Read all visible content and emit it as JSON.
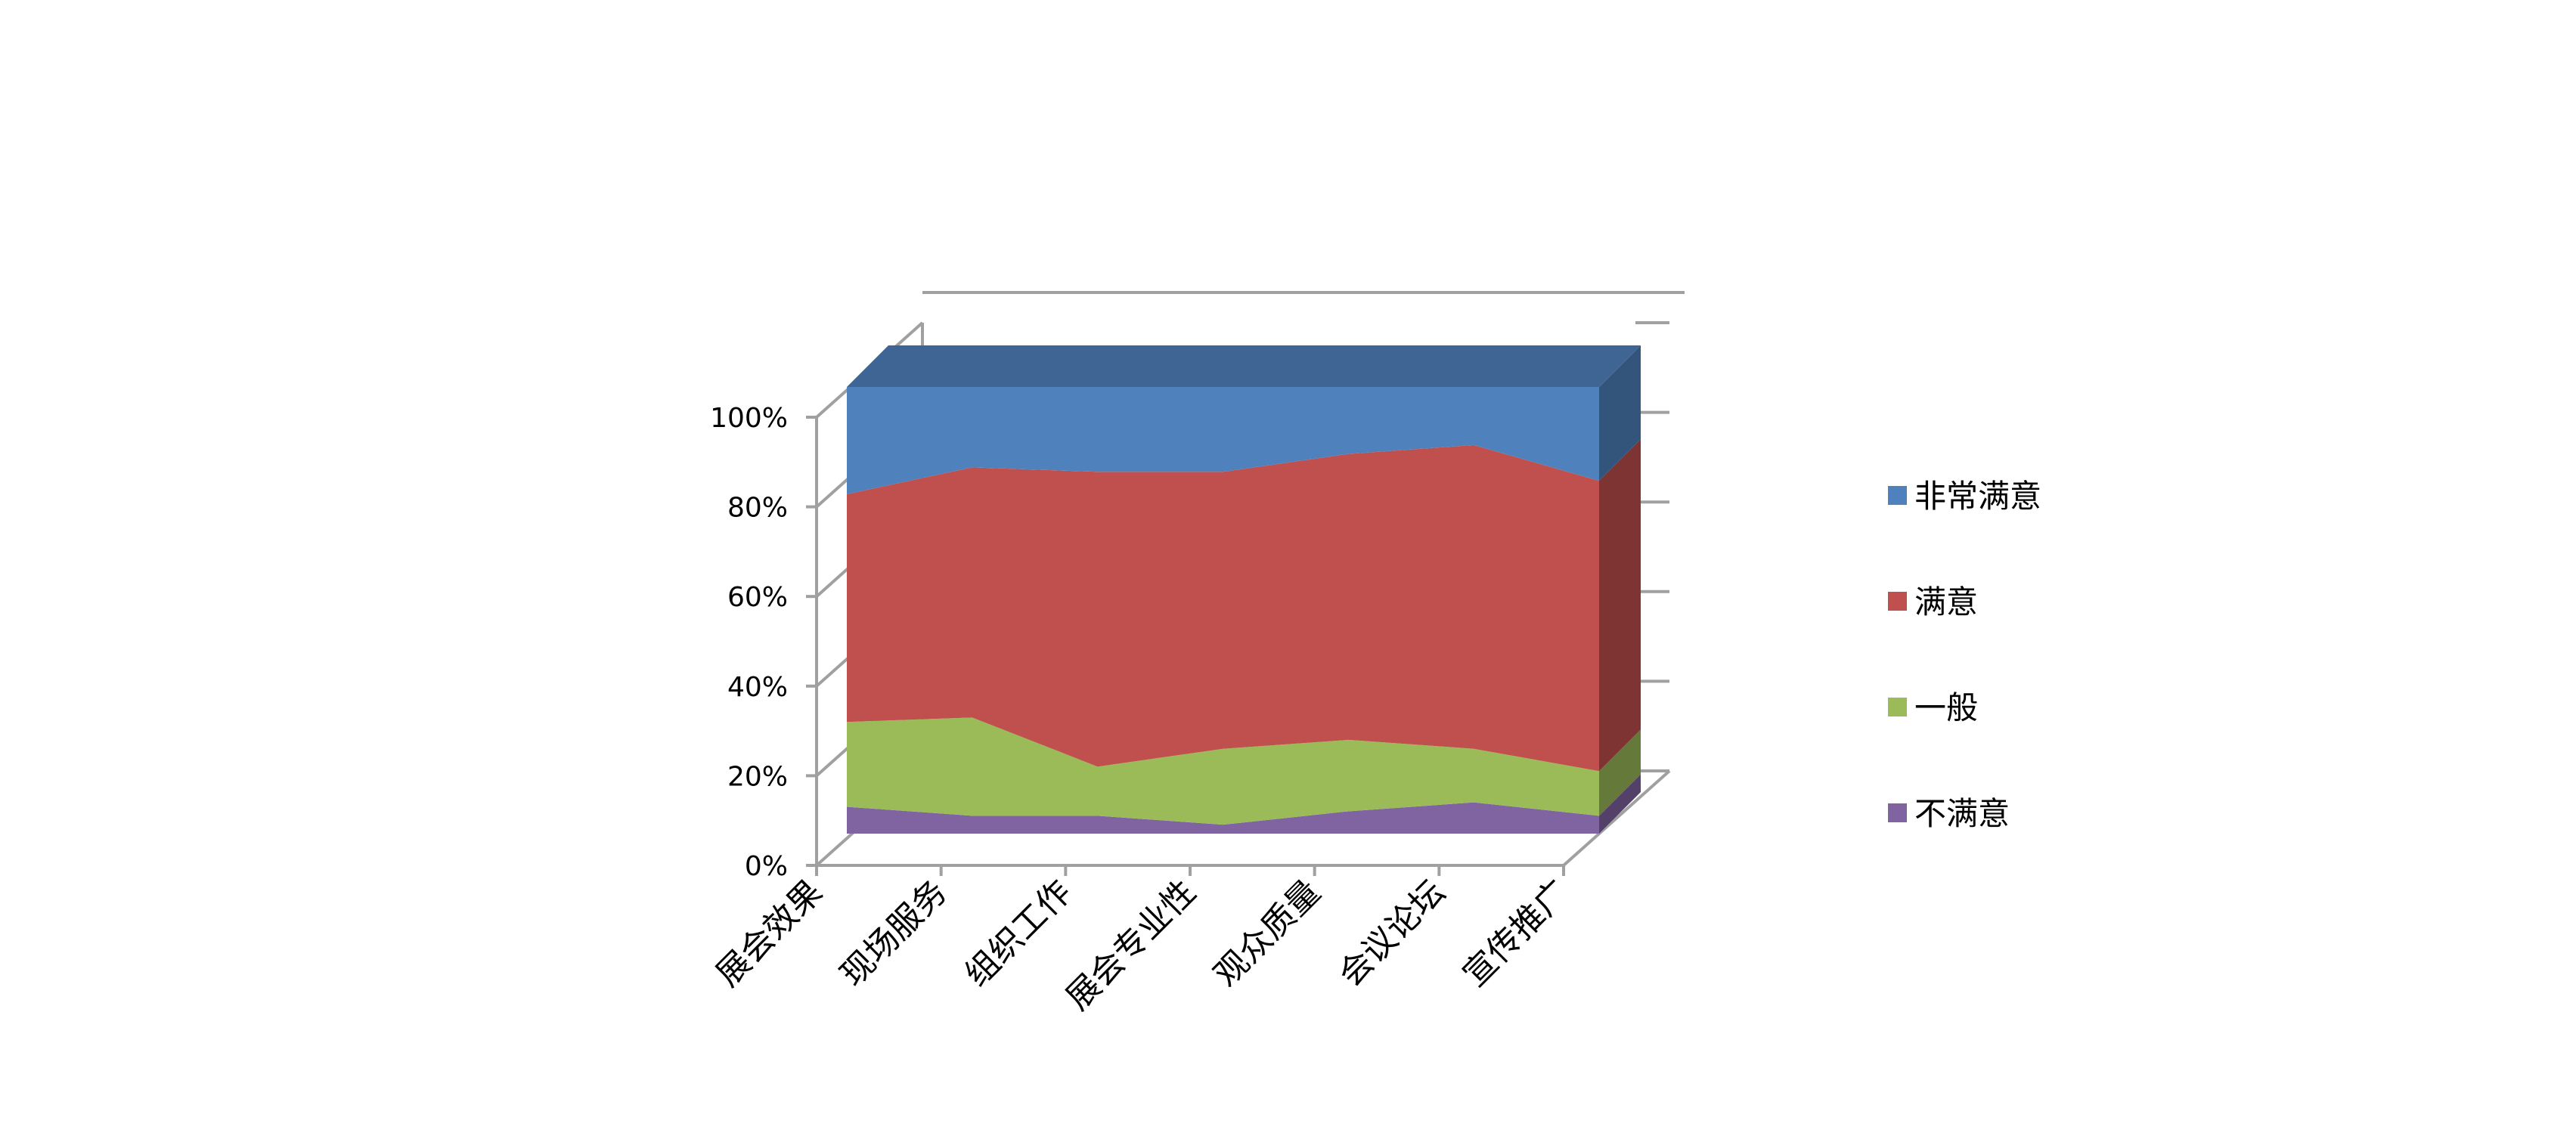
{
  "chart_data": {
    "type": "area",
    "stacked": "percent",
    "three_d": true,
    "categories": [
      "展会效果",
      "现场服务",
      "组织工作",
      "展会专业性",
      "观众质量",
      "会议论坛",
      "宣传推广"
    ],
    "series": [
      {
        "name": "不满意",
        "values": [
          6,
          4,
          4,
          2,
          5,
          7,
          4
        ],
        "color": "#8064A2"
      },
      {
        "name": "一般",
        "values": [
          19,
          22,
          11,
          17,
          16,
          12,
          10
        ],
        "color": "#9BBB59"
      },
      {
        "name": "满意",
        "values": [
          51,
          56,
          66,
          62,
          64,
          68,
          65
        ],
        "color": "#C0504D"
      },
      {
        "name": "非常满意",
        "values": [
          24,
          18,
          19,
          19,
          15,
          13,
          21
        ],
        "color": "#4F81BD"
      }
    ],
    "y_ticks": [
      "0%",
      "20%",
      "40%",
      "60%",
      "80%",
      "100%"
    ],
    "ylim": [
      0,
      100
    ],
    "legend_position": "right",
    "legend_order": [
      "非常满意",
      "满意",
      "一般",
      "不满意"
    ],
    "grid": false,
    "axis_color": "#A0A0A0"
  }
}
